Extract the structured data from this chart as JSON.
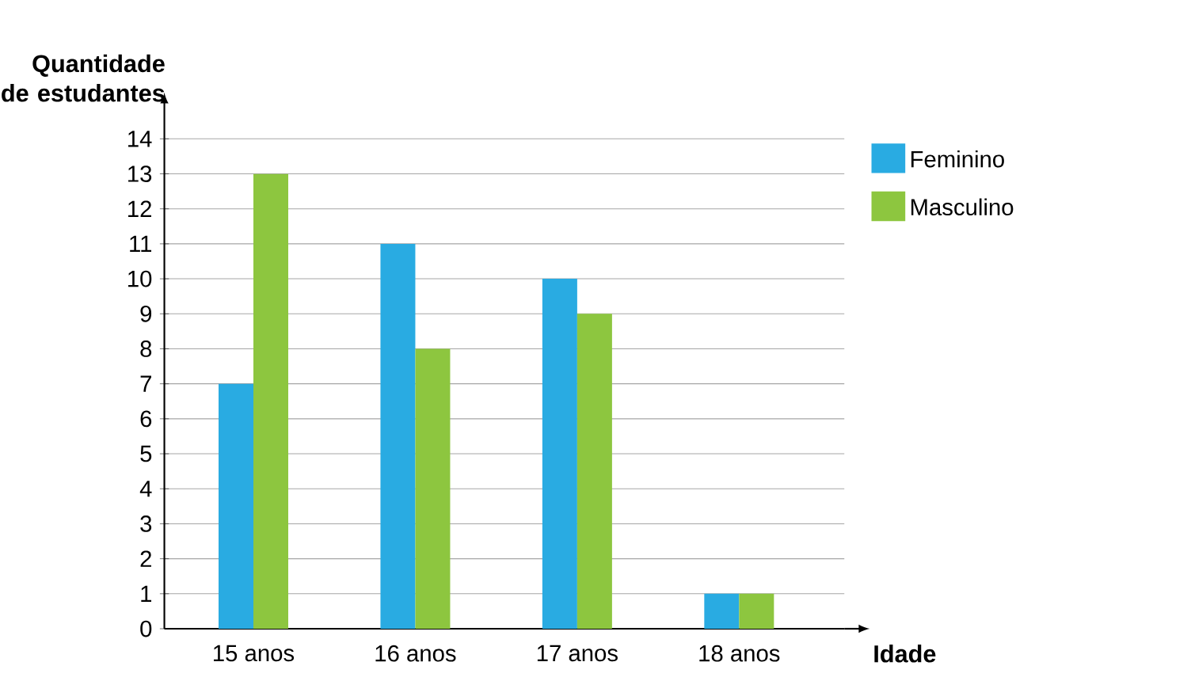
{
  "chart_data": {
    "type": "bar",
    "xlabel": "Idade",
    "ylabel": "Quantidade de estudantes",
    "categories": [
      "15 anos",
      "16 anos",
      "17 anos",
      "18 anos"
    ],
    "series": [
      {
        "name": "Feminino",
        "color": "#29abe2",
        "values": [
          7,
          11,
          10,
          1
        ]
      },
      {
        "name": "Masculino",
        "color": "#8dc63f",
        "values": [
          13,
          8,
          9,
          1
        ]
      }
    ],
    "ylim": [
      0,
      14
    ],
    "yticks": [
      0,
      1,
      2,
      3,
      4,
      5,
      6,
      7,
      8,
      9,
      10,
      11,
      12,
      13,
      14
    ],
    "grid": "y",
    "legend": "top right"
  }
}
